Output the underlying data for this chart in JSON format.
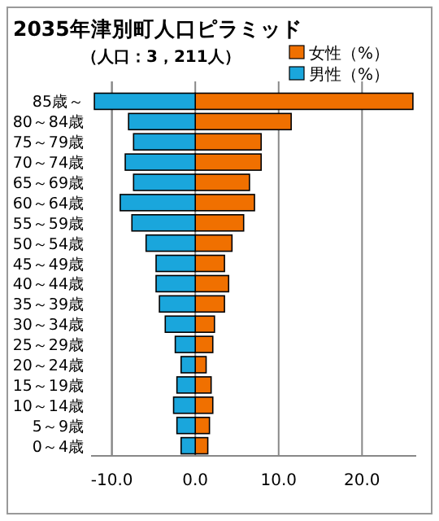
{
  "chart_data": {
    "type": "bar",
    "orientation": "horizontal",
    "title": "2035年津別町人口ピラミッド",
    "subtitle": "（人口：3，211人）",
    "categories": [
      "85歳～",
      "80～84歳",
      "75～79歳",
      "70～74歳",
      "65～69歳",
      "60～64歳",
      "55～59歳",
      "50～54歳",
      "45～49歳",
      "40～44歳",
      "35～39歳",
      "30～34歳",
      "25～29歳",
      "20～24歳",
      "15～19歳",
      "10～14歳",
      "5～9歳",
      "0～4歳"
    ],
    "series": [
      {
        "name": "女性（%）",
        "color": "#f07000",
        "values": [
          26.1,
          11.5,
          7.9,
          7.9,
          6.5,
          7.1,
          5.8,
          4.4,
          3.5,
          4.0,
          3.5,
          2.3,
          2.1,
          1.3,
          1.9,
          2.1,
          1.7,
          1.5
        ]
      },
      {
        "name": "男性（%）",
        "color": "#1aa6dc",
        "values": [
          -12.1,
          -8.0,
          -7.4,
          -8.4,
          -7.4,
          -9.0,
          -7.6,
          -5.9,
          -4.7,
          -4.7,
          -4.3,
          -3.6,
          -2.4,
          -1.7,
          -2.2,
          -2.6,
          -2.2,
          -1.7
        ]
      }
    ],
    "xlim": [
      -12.5,
      26.5
    ],
    "xticks": [
      {
        "value": -10,
        "label": "-10.0"
      },
      {
        "value": 0,
        "label": "0.0"
      },
      {
        "value": 10,
        "label": "10.0"
      },
      {
        "value": 20,
        "label": "20.0"
      }
    ],
    "grid": "x",
    "legend": "top right",
    "stacked": true
  }
}
